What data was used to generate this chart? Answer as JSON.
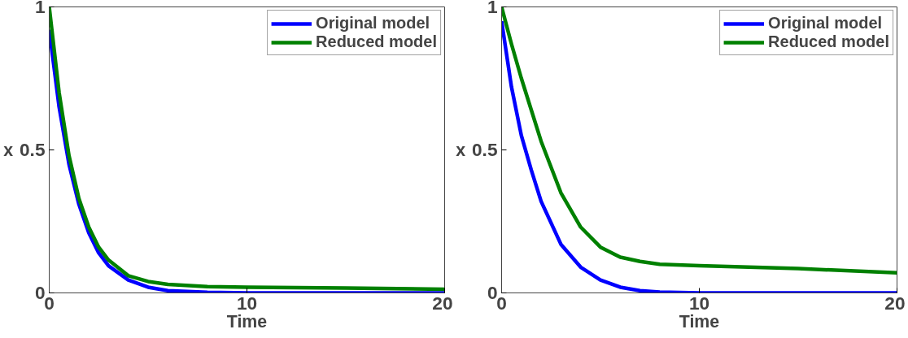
{
  "chart_data": [
    {
      "type": "line",
      "xlabel": "Time",
      "ylabel": "x",
      "xlim": [
        0,
        20
      ],
      "ylim": [
        0,
        1
      ],
      "xticks": [
        0,
        10,
        20
      ],
      "yticks": [
        0,
        0.5,
        1
      ],
      "grid": false,
      "legend": "top right",
      "line_style": "solid",
      "marker": "none",
      "x": [
        0,
        0.5,
        1,
        1.5,
        2,
        2.5,
        3,
        4,
        5,
        6,
        8,
        10,
        15,
        20
      ],
      "series": [
        {
          "name": "Original model",
          "color": "#0000ff",
          "values": [
            0.92,
            0.65,
            0.45,
            0.31,
            0.21,
            0.14,
            0.095,
            0.045,
            0.02,
            0.008,
            0.002,
            0,
            0,
            0
          ]
        },
        {
          "name": "Reduced model",
          "color": "#008000",
          "values": [
            1,
            0.7,
            0.48,
            0.33,
            0.23,
            0.16,
            0.115,
            0.06,
            0.04,
            0.03,
            0.022,
            0.02,
            0.017,
            0.013
          ]
        }
      ]
    },
    {
      "type": "line",
      "xlabel": "Time",
      "ylabel": "x",
      "xlim": [
        0,
        20
      ],
      "ylim": [
        0,
        1
      ],
      "xticks": [
        0,
        10,
        20
      ],
      "yticks": [
        0,
        0.5,
        1
      ],
      "grid": false,
      "legend": "top right",
      "line_style": "solid",
      "marker": "none",
      "x": [
        0,
        0.5,
        1,
        1.5,
        2,
        3,
        4,
        5,
        6,
        7,
        8,
        10,
        15,
        20
      ],
      "series": [
        {
          "name": "Original model",
          "color": "#0000ff",
          "values": [
            0.95,
            0.72,
            0.55,
            0.43,
            0.32,
            0.17,
            0.09,
            0.045,
            0.02,
            0.008,
            0.003,
            0,
            0,
            0
          ]
        },
        {
          "name": "Reduced model",
          "color": "#008000",
          "values": [
            1,
            0.87,
            0.75,
            0.64,
            0.53,
            0.35,
            0.23,
            0.16,
            0.125,
            0.11,
            0.1,
            0.095,
            0.085,
            0.07
          ]
        }
      ]
    }
  ]
}
